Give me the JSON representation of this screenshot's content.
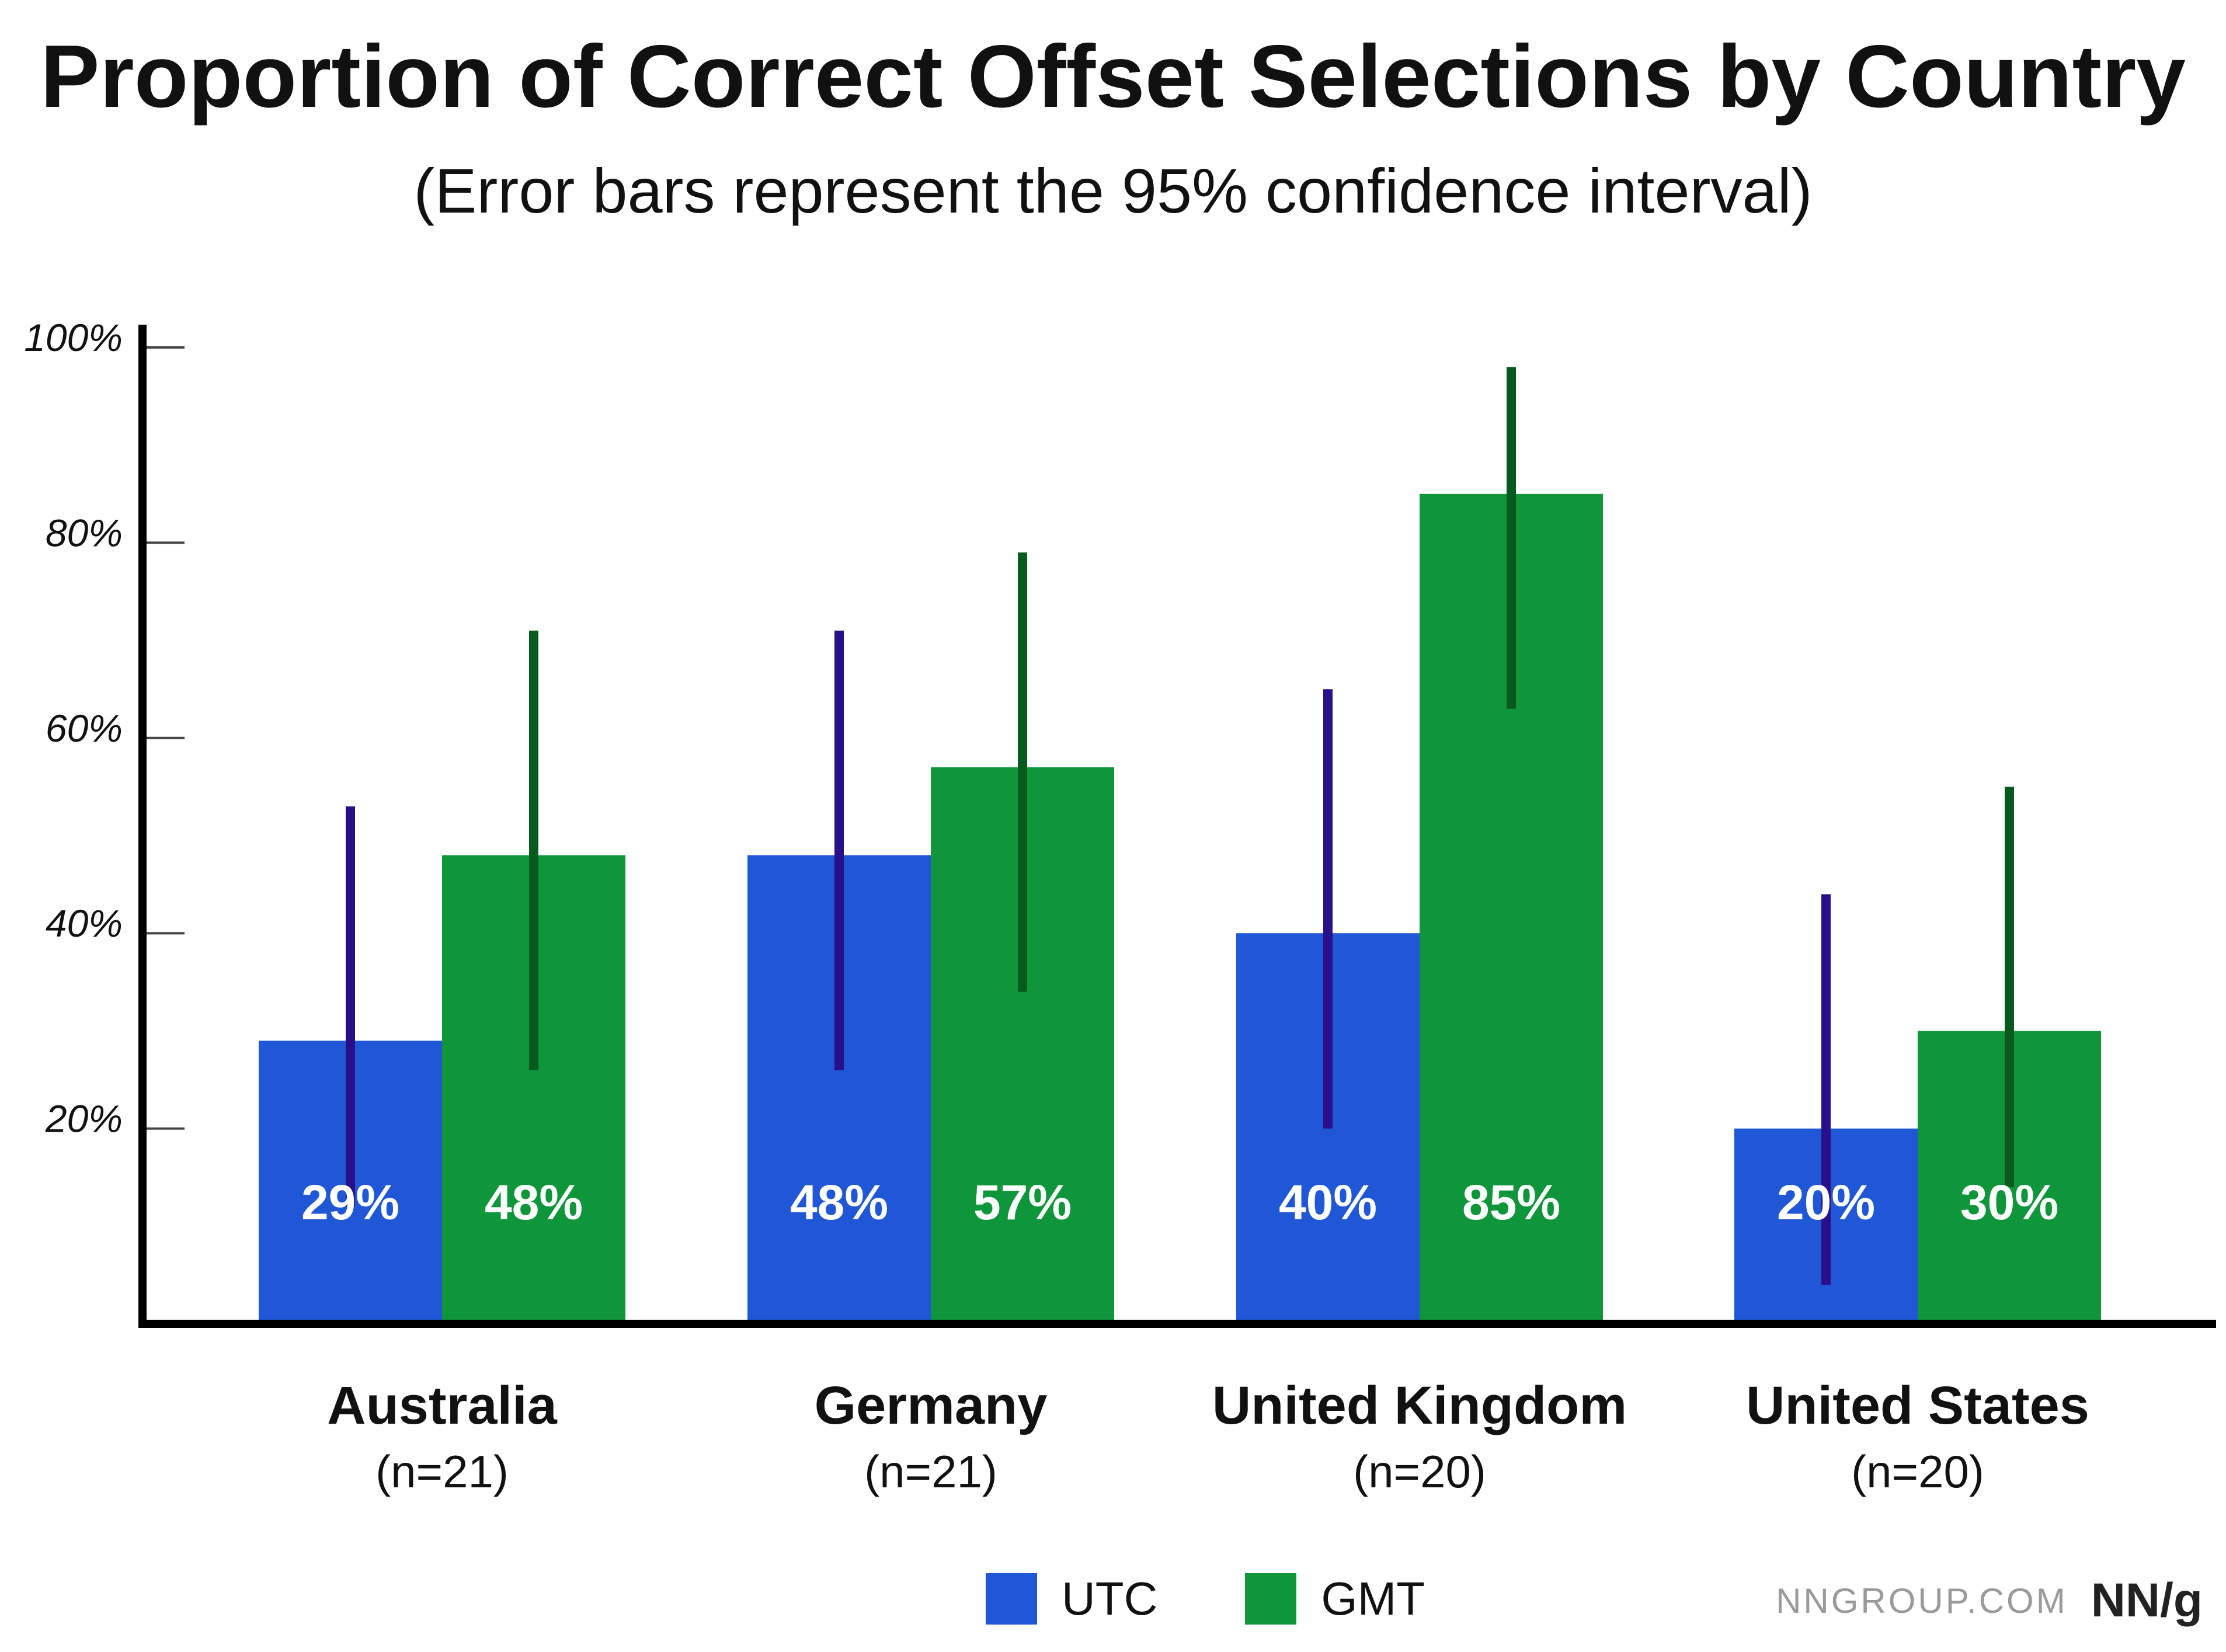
{
  "chart_data": {
    "type": "bar",
    "title": "Proportion of Correct Offset Selections by Country",
    "subtitle": "(Error bars represent the 95% confidence interval)",
    "categories": [
      "Australia",
      "Germany",
      "United Kingdom",
      "United States"
    ],
    "category_counts": [
      "(n=21)",
      "(n=21)",
      "(n=20)",
      "(n=20)"
    ],
    "ylim": [
      0,
      100
    ],
    "yticks": [
      20,
      40,
      60,
      80,
      100
    ],
    "ytick_labels": [
      "20%",
      "40%",
      "60%",
      "80%",
      "100%"
    ],
    "grid": false,
    "legend_position": "bottom",
    "series": [
      {
        "name": "UTC",
        "color": "#1f57d6",
        "error_color": "#2a0f8a",
        "values": [
          29,
          48,
          40,
          20
        ],
        "value_labels": [
          "29%",
          "48%",
          "40%",
          "20%"
        ],
        "ci_low": [
          12,
          26,
          20,
          4
        ],
        "ci_high": [
          53,
          71,
          65,
          44
        ]
      },
      {
        "name": "GMT",
        "color": "#0f963a",
        "error_color": "#075a1e",
        "values": [
          48,
          57,
          85,
          30
        ],
        "value_labels": [
          "48%",
          "57%",
          "85%",
          "30%"
        ],
        "ci_low": [
          26,
          34,
          63,
          14
        ],
        "ci_high": [
          71,
          79,
          98,
          55
        ]
      }
    ]
  },
  "brand": {
    "url": "NNGROUP.COM",
    "logo": "NN/g"
  }
}
